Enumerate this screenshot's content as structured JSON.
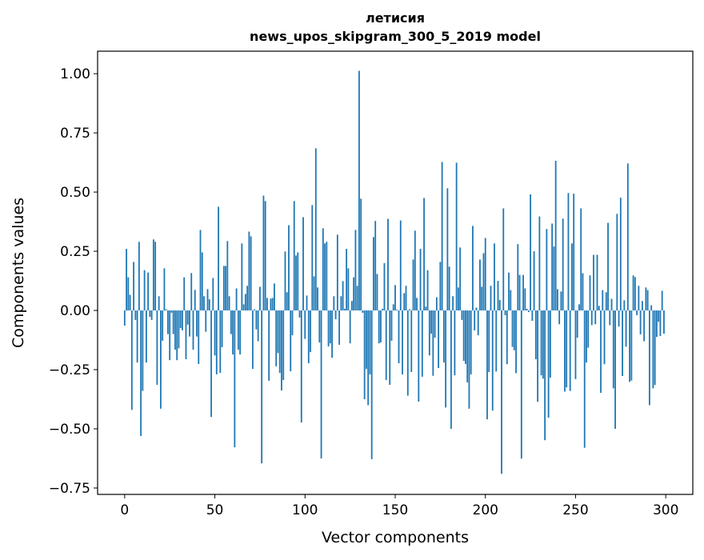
{
  "chart_data": {
    "type": "bar",
    "title": "летисия",
    "subtitle": "news_upos_skipgram_300_5_2019 model",
    "xlabel": "Vector components",
    "ylabel": "Components values",
    "xlim": [
      -15,
      315
    ],
    "ylim": [
      -0.777,
      1.095
    ],
    "xticks": [
      0,
      50,
      100,
      150,
      200,
      250,
      300
    ],
    "xtick_labels": [
      "0",
      "50",
      "100",
      "150",
      "200",
      "250",
      "300"
    ],
    "yticks": [
      -0.75,
      -0.5,
      -0.25,
      0,
      0.25,
      0.5,
      0.75,
      1.0
    ],
    "ytick_labels": [
      "−0.75",
      "−0.50",
      "−0.25",
      "0.00",
      "0.25",
      "0.50",
      "0.75",
      "1.00"
    ],
    "grid": false,
    "bar_color": "#1f77b4",
    "values": [
      -0.064,
      0.26,
      0.14,
      0.066,
      -0.42,
      0.205,
      -0.04,
      -0.22,
      0.29,
      -0.53,
      -0.34,
      0.17,
      -0.22,
      0.16,
      -0.027,
      -0.04,
      0.3,
      0.29,
      -0.314,
      0.06,
      -0.415,
      -0.128,
      0.178,
      0.005,
      -0.1,
      -0.21,
      -0.01,
      -0.1,
      -0.166,
      -0.21,
      -0.16,
      -0.074,
      -0.084,
      0.14,
      -0.206,
      -0.06,
      -0.11,
      0.158,
      -0.166,
      0.087,
      -0.11,
      -0.226,
      0.34,
      0.245,
      0.06,
      -0.09,
      0.09,
      0.047,
      -0.45,
      0.137,
      -0.19,
      -0.27,
      0.438,
      -0.264,
      -0.155,
      0.188,
      0.188,
      0.293,
      0.06,
      -0.1,
      -0.186,
      -0.578,
      0.093,
      -0.166,
      -0.186,
      0.283,
      0.026,
      0.07,
      0.104,
      0.333,
      0.313,
      -0.247,
      0.005,
      -0.08,
      -0.13,
      0.1,
      -0.646,
      0.485,
      0.462,
      0.053,
      -0.297,
      0.05,
      0.053,
      0.114,
      -0.236,
      -0.18,
      -0.264,
      -0.338,
      -0.294,
      0.249,
      0.077,
      0.36,
      -0.257,
      -0.105,
      0.462,
      0.232,
      0.245,
      -0.03,
      -0.473,
      0.394,
      -0.12,
      0.063,
      -0.223,
      -0.176,
      0.445,
      0.144,
      0.685,
      0.097,
      -0.135,
      -0.625,
      0.347,
      0.283,
      0.29,
      -0.152,
      -0.139,
      -0.2,
      0.06,
      -0.037,
      0.32,
      -0.145,
      0.06,
      0.124,
      0.007,
      0.26,
      0.178,
      -0.139,
      0.04,
      0.14,
      0.34,
      0.104,
      1.012,
      0.472,
      -0.01,
      -0.375,
      -0.247,
      -0.4,
      -0.27,
      -0.628,
      0.31,
      0.378,
      0.154,
      -0.139,
      -0.135,
      0.007,
      0.2,
      -0.294,
      0.387,
      -0.314,
      -0.128,
      0.026,
      0.107,
      0.003,
      -0.223,
      0.38,
      -0.27,
      0.073,
      0.104,
      -0.36,
      0.005,
      -0.26,
      0.215,
      0.337,
      0.053,
      -0.385,
      0.26,
      -0.28,
      0.475,
      0.016,
      0.17,
      -0.19,
      -0.098,
      -0.276,
      -0.115,
      0.056,
      -0.243,
      0.205,
      0.627,
      -0.22,
      -0.41,
      0.516,
      0.185,
      -0.5,
      0.06,
      -0.274,
      0.624,
      0.097,
      0.266,
      -0.04,
      -0.213,
      -0.226,
      -0.304,
      -0.415,
      -0.27,
      0.357,
      -0.084,
      0.012,
      -0.105,
      0.215,
      0.1,
      0.242,
      0.306,
      -0.46,
      -0.26,
      0.104,
      -0.423,
      0.283,
      -0.258,
      0.125,
      0.044,
      -0.69,
      0.431,
      -0.02,
      -0.227,
      0.16,
      0.086,
      -0.154,
      -0.168,
      -0.265,
      0.28,
      0.15,
      -0.626,
      0.15,
      0.093,
      0.007,
      -0.007,
      0.49,
      -0.044,
      0.25,
      -0.206,
      -0.386,
      0.397,
      -0.274,
      -0.288,
      -0.548,
      0.344,
      -0.453,
      -0.284,
      0.367,
      0.27,
      0.632,
      0.09,
      -0.058,
      0.08,
      0.388,
      -0.343,
      -0.325,
      0.496,
      -0.34,
      0.283,
      0.493,
      -0.29,
      -0.115,
      0.026,
      0.431,
      0.157,
      -0.58,
      -0.22,
      -0.157,
      0.148,
      -0.062,
      0.235,
      -0.058,
      0.235,
      0.019,
      -0.348,
      0.086,
      -0.227,
      0.077,
      0.37,
      -0.062,
      0.049,
      -0.329,
      -0.5,
      0.408,
      -0.068,
      0.476,
      -0.277,
      0.043,
      -0.153,
      0.621,
      -0.302,
      -0.296,
      0.148,
      0.141,
      -0.02,
      0.104,
      -0.101,
      0.04,
      -0.13,
      0.097,
      0.086,
      -0.4,
      0.022,
      -0.329,
      -0.315,
      -0.112,
      -0.048,
      -0.108,
      0.083,
      -0.098
    ]
  }
}
